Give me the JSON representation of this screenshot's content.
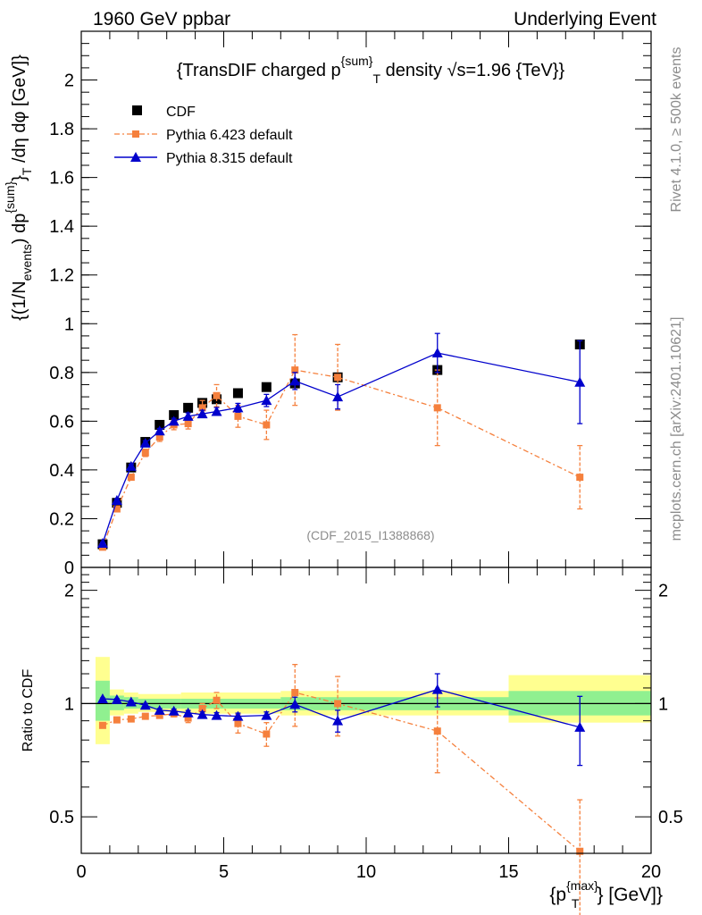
{
  "header": {
    "left": "1960 GeV ppbar",
    "right": "Underlying Event"
  },
  "side_labels": {
    "rivet": "Rivet 4.1.0, ≥ 500k events",
    "mcplots": "mcplots.cern.ch [arXiv:2401.10621]"
  },
  "colors": {
    "cdf": "#000000",
    "py6": "#f5803d",
    "py8": "#0000cc",
    "band_inner": "#90f090",
    "band_outer": "#ffff90"
  },
  "chart_data": [
    {
      "type": "scatter",
      "title": "{TransDIF charged p_T^{sum} density √s=1.96 {TeV}}",
      "title_parts": {
        "prefix": "{TransDIF charged p",
        "sup": "{sum}",
        "sub": "T",
        "suffix": " density ",
        "sqrt": "√",
        "s_part": "s=1.96 {TeV}}"
      },
      "ylabel": "{(1/N_events) dp_T^{sum} /dη dφ [GeV]}",
      "ylabel_parts": {
        "p1": "{(1/N",
        "sub1": "events",
        "p2": ") dp",
        "sup2": "{sum}",
        "p3": "}",
        "sub3": "T",
        "p4": " /dη  dφ [GeV]}"
      },
      "annotation": "(CDF_2015_I1388868)",
      "xlim": [
        0,
        20
      ],
      "ylim": [
        0,
        2.2
      ],
      "yticks": [
        0,
        0.2,
        0.4,
        0.6,
        0.8,
        1,
        1.2,
        1.4,
        1.6,
        1.8,
        2
      ],
      "ytick_labels": [
        "0",
        "0.2",
        "0.4",
        "0.6",
        "0.8",
        "1",
        "1.2",
        "1.4",
        "1.6",
        "1.8",
        "2"
      ],
      "legend": {
        "placement": "top-left",
        "entries": [
          "CDF",
          "Pythia 6.423 default",
          "Pythia 8.315 default"
        ]
      },
      "series": [
        {
          "name": "CDF",
          "marker": "square",
          "x": [
            0.75,
            1.25,
            1.75,
            2.25,
            2.75,
            3.25,
            3.75,
            4.25,
            4.75,
            5.5,
            6.5,
            7.5,
            9.0,
            12.5,
            17.5
          ],
          "y": [
            0.095,
            0.265,
            0.41,
            0.515,
            0.585,
            0.625,
            0.655,
            0.675,
            0.69,
            0.715,
            0.74,
            0.755,
            0.78,
            0.81,
            0.915
          ]
        },
        {
          "name": "Pythia 6.423 default",
          "marker": "square-small",
          "line": "dashdot",
          "x": [
            0.75,
            1.25,
            1.75,
            2.25,
            2.75,
            3.25,
            3.75,
            4.25,
            4.75,
            5.5,
            6.5,
            7.5,
            9.0,
            12.5,
            17.5
          ],
          "y": [
            0.083,
            0.24,
            0.37,
            0.47,
            0.535,
            0.585,
            0.59,
            0.655,
            0.705,
            0.62,
            0.585,
            0.81,
            0.78,
            0.655,
            0.37
          ],
          "err": [
            0.008,
            0.01,
            0.012,
            0.015,
            0.018,
            0.02,
            0.022,
            0.03,
            0.045,
            0.045,
            0.06,
            0.145,
            0.135,
            0.155,
            0.13
          ]
        },
        {
          "name": "Pythia 8.315 default",
          "marker": "triangle",
          "line": "solid",
          "x": [
            0.75,
            1.25,
            1.75,
            2.25,
            2.75,
            3.25,
            3.75,
            4.25,
            4.75,
            5.5,
            6.5,
            7.5,
            9.0,
            12.5,
            17.5
          ],
          "y": [
            0.099,
            0.275,
            0.415,
            0.51,
            0.56,
            0.6,
            0.62,
            0.63,
            0.64,
            0.655,
            0.685,
            0.765,
            0.7,
            0.88,
            0.76
          ],
          "err": [
            0.004,
            0.006,
            0.008,
            0.01,
            0.01,
            0.012,
            0.014,
            0.015,
            0.016,
            0.018,
            0.025,
            0.035,
            0.05,
            0.08,
            0.17
          ]
        }
      ]
    },
    {
      "type": "scatter",
      "ylabel": "Ratio to CDF",
      "xlabel": "{p_T^{max}} [GeV]}",
      "xlabel_parts": {
        "p1": "{p",
        "sup": "{max}",
        "sub": "T",
        "p2": "} [GeV]}"
      },
      "yscale": "log",
      "xlim": [
        0,
        20
      ],
      "ylim": [
        0.4,
        2.3
      ],
      "yticks": [
        0.5,
        1,
        2
      ],
      "ytick_labels": [
        "0.5",
        "1",
        "2"
      ],
      "xticks": [
        0,
        5,
        10,
        15,
        20
      ],
      "xtick_labels": [
        "0",
        "5",
        "10",
        "15",
        "20"
      ],
      "bands": [
        {
          "x0": 0.5,
          "x1": 1.0,
          "inner": [
            0.9,
            1.15
          ],
          "outer": [
            0.78,
            1.33
          ]
        },
        {
          "x0": 1.0,
          "x1": 1.5,
          "inner": [
            0.96,
            1.05
          ],
          "outer": [
            0.93,
            1.09
          ]
        },
        {
          "x0": 1.5,
          "x1": 2.0,
          "inner": [
            0.97,
            1.04
          ],
          "outer": [
            0.94,
            1.07
          ]
        },
        {
          "x0": 2.0,
          "x1": 3.5,
          "inner": [
            0.97,
            1.03
          ],
          "outer": [
            0.95,
            1.06
          ]
        },
        {
          "x0": 3.5,
          "x1": 7.0,
          "inner": [
            0.97,
            1.03
          ],
          "outer": [
            0.94,
            1.07
          ]
        },
        {
          "x0": 7.0,
          "x1": 10.0,
          "inner": [
            0.96,
            1.04
          ],
          "outer": [
            0.93,
            1.08
          ]
        },
        {
          "x0": 10.0,
          "x1": 15.0,
          "inner": [
            0.96,
            1.04
          ],
          "outer": [
            0.93,
            1.08
          ]
        },
        {
          "x0": 15.0,
          "x1": 20.0,
          "inner": [
            0.93,
            1.08
          ],
          "outer": [
            0.89,
            1.19
          ]
        }
      ],
      "series": [
        {
          "name": "Pythia 6.423 default",
          "x": [
            0.75,
            1.25,
            1.75,
            2.25,
            2.75,
            3.25,
            3.75,
            4.25,
            4.75,
            5.5,
            6.5,
            7.5,
            9.0,
            12.5,
            17.5
          ],
          "y": [
            0.875,
            0.905,
            0.91,
            0.925,
            0.93,
            0.94,
            0.915,
            0.97,
            1.02,
            0.885,
            0.83,
            1.07,
            1.0,
            0.845,
            0.405
          ],
          "err": [
            0.01,
            0.012,
            0.012,
            0.015,
            0.016,
            0.018,
            0.025,
            0.03,
            0.05,
            0.05,
            0.06,
            0.2,
            0.18,
            0.19,
            0.15
          ]
        },
        {
          "name": "Pythia 8.315 default",
          "x": [
            0.75,
            1.25,
            1.75,
            2.25,
            2.75,
            3.25,
            3.75,
            4.25,
            4.75,
            5.5,
            6.5,
            7.5,
            9.0,
            12.5,
            17.5
          ],
          "y": [
            1.03,
            1.025,
            1.01,
            0.99,
            0.96,
            0.955,
            0.945,
            0.935,
            0.93,
            0.925,
            0.93,
            0.995,
            0.9,
            1.09,
            0.865
          ],
          "err": [
            0.005,
            0.006,
            0.008,
            0.01,
            0.01,
            0.012,
            0.014,
            0.015,
            0.016,
            0.018,
            0.02,
            0.045,
            0.06,
            0.11,
            0.18
          ]
        }
      ]
    }
  ]
}
